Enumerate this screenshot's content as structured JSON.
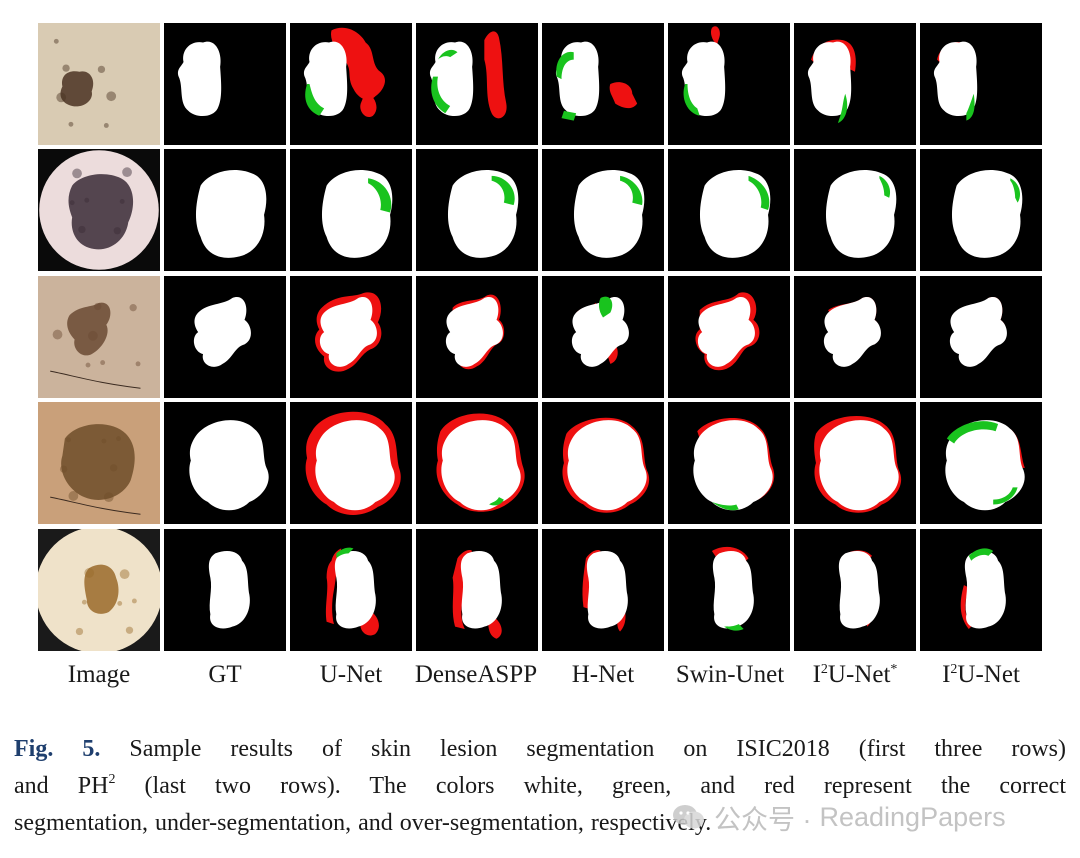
{
  "figure": {
    "columns": [
      "Image",
      "GT",
      "U-Net",
      "DenseASPP",
      "H-Net",
      "Swin-Unet",
      "I2U-Net*",
      "I2U-Net"
    ],
    "column_labels": {
      "image": "Image",
      "gt": "GT",
      "unet": "U-Net",
      "denseaspp": "DenseASPP",
      "hnet": "H-Net",
      "swinunet": "Swin-Unet",
      "i2unet_star": {
        "prefix": "I",
        "sup": "2",
        "suffix": "U-Net",
        "mark": "*"
      },
      "i2unet": {
        "prefix": "I",
        "sup": "2",
        "suffix": "U-Net"
      }
    },
    "rows": [
      {
        "dataset": "ISIC2018",
        "index": 1
      },
      {
        "dataset": "ISIC2018",
        "index": 2
      },
      {
        "dataset": "ISIC2018",
        "index": 3
      },
      {
        "dataset": "PH2",
        "index": 4
      },
      {
        "dataset": "PH2",
        "index": 5
      }
    ],
    "legend_colors": {
      "correct": "#ffffff",
      "under": "#19c31e",
      "over": "#ee1111",
      "background": "#000000"
    }
  },
  "caption": {
    "label": "Fig. 5.",
    "line1": "Sample results of skin lesion segmentation on ISIC2018 (first three rows)",
    "line2_a": "and PH",
    "line2_sup": "2",
    "line2_b": "(last two rows). The colors white, green, and red represent the correct",
    "line3": "segmentation, under-segmentation, and over-segmentation, respectively."
  },
  "watermark": {
    "prefix": "公众号 ·",
    "text": "ReadingPapers",
    "icon": "wechat-icon"
  }
}
